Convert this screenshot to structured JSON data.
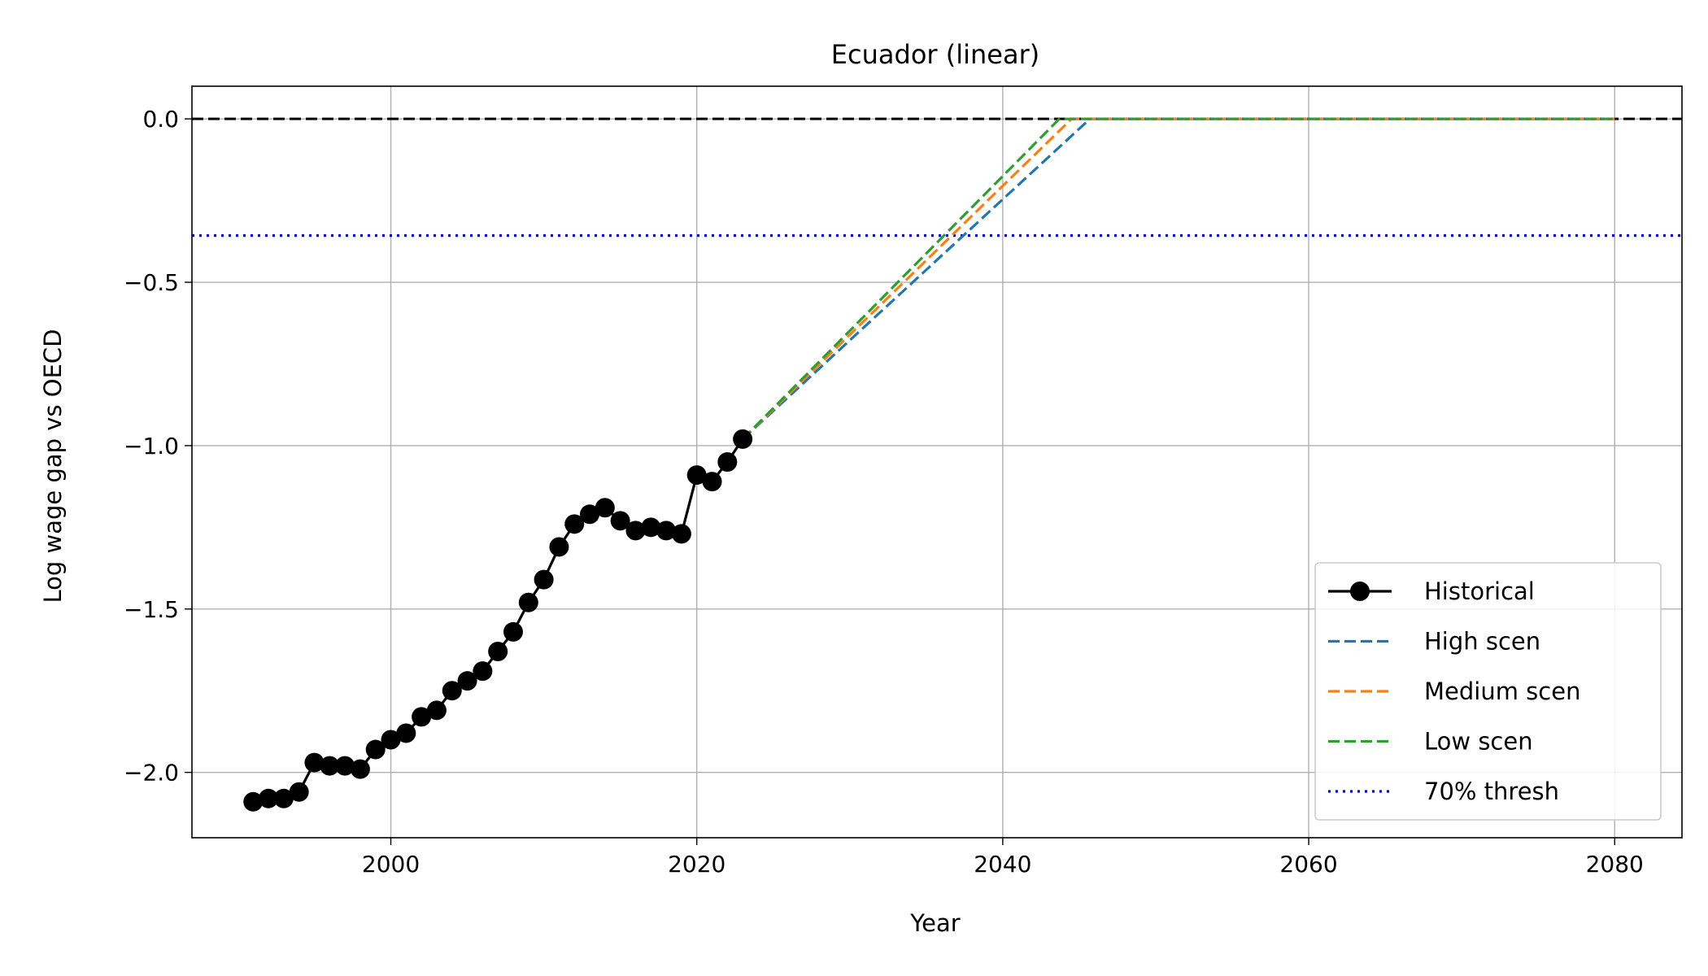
{
  "chart_data": {
    "type": "line",
    "title": "Ecuador (linear)",
    "xlabel": "Year",
    "ylabel": "Log wage gap vs OECD",
    "xlim": [
      1987,
      2084.4
    ],
    "ylim": [
      -2.2,
      0.1
    ],
    "xticks": [
      2000,
      2020,
      2040,
      2060,
      2080
    ],
    "yticks": [
      0.0,
      -0.5,
      -1.0,
      -1.5,
      -2.0
    ],
    "xtick_labels": [
      "2000",
      "2020",
      "2040",
      "2060",
      "2080"
    ],
    "ytick_labels": [
      "0.0",
      "−0.5",
      "−1.0",
      "−1.5",
      "−2.0"
    ],
    "grid": true,
    "legend_position": "lower-right",
    "reference_lines": [
      {
        "name": "zero",
        "y": 0.0,
        "color": "#000000",
        "style": "dashed"
      },
      {
        "name": "70% thresh",
        "y": -0.357,
        "color": "#0000ff",
        "style": "dotted"
      }
    ],
    "series": [
      {
        "name": "Historical",
        "color": "#000000",
        "style": "solid-marker",
        "x": [
          1991,
          1992,
          1993,
          1994,
          1995,
          1996,
          1997,
          1998,
          1999,
          2000,
          2001,
          2002,
          2003,
          2004,
          2005,
          2006,
          2007,
          2008,
          2009,
          2010,
          2011,
          2012,
          2013,
          2014,
          2015,
          2016,
          2017,
          2018,
          2019,
          2020,
          2021,
          2022,
          2023
        ],
        "y": [
          -2.09,
          -2.08,
          -2.08,
          -2.06,
          -1.97,
          -1.98,
          -1.98,
          -1.99,
          -1.93,
          -1.9,
          -1.88,
          -1.83,
          -1.81,
          -1.75,
          -1.72,
          -1.69,
          -1.63,
          -1.57,
          -1.48,
          -1.41,
          -1.31,
          -1.24,
          -1.21,
          -1.19,
          -1.23,
          -1.26,
          -1.25,
          -1.26,
          -1.27,
          -1.09,
          -1.11,
          -1.05,
          -0.98
        ]
      },
      {
        "name": "High scen",
        "color": "#1f77b4",
        "style": "dashed",
        "x": [
          2023,
          2045.7,
          2080
        ],
        "y": [
          -0.98,
          0.0,
          0.0
        ]
      },
      {
        "name": "Medium scen",
        "color": "#ff7f0e",
        "style": "dashed",
        "x": [
          2023,
          2044.5,
          2080
        ],
        "y": [
          -0.98,
          0.0,
          0.0
        ]
      },
      {
        "name": "Low scen",
        "color": "#2ca02c",
        "style": "dashed",
        "x": [
          2023,
          2043.7,
          2080
        ],
        "y": [
          -0.98,
          0.0,
          0.0
        ]
      }
    ],
    "legend": [
      {
        "label": "Historical",
        "color": "#000000",
        "style": "solid-marker"
      },
      {
        "label": "High scen",
        "color": "#1f77b4",
        "style": "dashed"
      },
      {
        "label": "Medium scen",
        "color": "#ff7f0e",
        "style": "dashed"
      },
      {
        "label": "Low scen",
        "color": "#2ca02c",
        "style": "dashed"
      },
      {
        "label": "70% thresh",
        "color": "#0000ff",
        "style": "dotted"
      }
    ]
  }
}
